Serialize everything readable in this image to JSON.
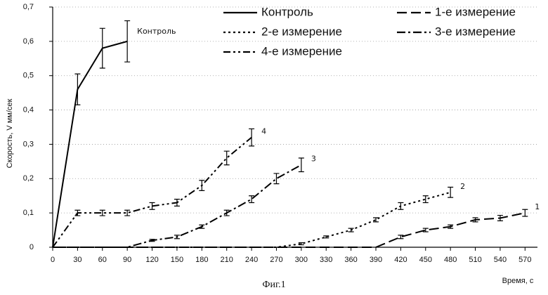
{
  "chart_data": {
    "type": "line",
    "y_label": "Скорость, V мм/сек",
    "x_label": "Время, с",
    "caption": "Фиг.1",
    "xlim": [
      0,
      585
    ],
    "ylim": [
      0,
      0.7
    ],
    "xticks": [
      0,
      30,
      60,
      90,
      120,
      150,
      180,
      210,
      240,
      270,
      300,
      330,
      360,
      390,
      420,
      450,
      480,
      510,
      540,
      570
    ],
    "yticks": [
      {
        "value": 0,
        "label": "0"
      },
      {
        "value": 0.1,
        "label": "0,1"
      },
      {
        "value": 0.2,
        "label": "0,2"
      },
      {
        "value": 0.3,
        "label": "0,3"
      },
      {
        "value": 0.4,
        "label": "0,4"
      },
      {
        "value": 0.5,
        "label": "0,5"
      },
      {
        "value": 0.6,
        "label": "0,6"
      },
      {
        "value": 0.7,
        "label": "0,7"
      }
    ],
    "grid": true,
    "series": [
      {
        "name": "Контроль",
        "end_label": "Контроль",
        "color": "#000000",
        "dash": "none",
        "x": [
          0,
          30,
          60,
          90
        ],
        "values": [
          0,
          0.46,
          0.58,
          0.6
        ],
        "errors": [
          null,
          0.045,
          0.058,
          0.06
        ]
      },
      {
        "name": "1-е измерение",
        "end_label": "1",
        "color": "#000000",
        "dash": "14,6",
        "x": [
          0,
          390,
          420,
          450,
          480,
          510,
          540,
          570
        ],
        "values": [
          0,
          0,
          0.03,
          0.05,
          0.06,
          0.08,
          0.085,
          0.1
        ],
        "errors": [
          null,
          null,
          0.005,
          0.005,
          0.005,
          0.006,
          0.008,
          0.01
        ]
      },
      {
        "name": "2-е измерение",
        "end_label": "2",
        "color": "#000000",
        "dash": "3,4",
        "x": [
          0,
          270,
          300,
          330,
          360,
          390,
          420,
          450,
          480
        ],
        "values": [
          0,
          0,
          0.01,
          0.03,
          0.05,
          0.08,
          0.12,
          0.14,
          0.16
        ],
        "errors": [
          null,
          null,
          0.003,
          0.003,
          0.005,
          0.006,
          0.01,
          0.01,
          0.015
        ]
      },
      {
        "name": "3-е измерение",
        "end_label": "3",
        "color": "#000000",
        "dash": "12,4,3,4",
        "x": [
          0,
          90,
          120,
          150,
          180,
          210,
          240,
          270,
          300
        ],
        "values": [
          0,
          0,
          0.02,
          0.03,
          0.06,
          0.1,
          0.14,
          0.2,
          0.24
        ],
        "errors": [
          null,
          null,
          0.003,
          0.005,
          0.005,
          0.008,
          0.01,
          0.015,
          0.02
        ]
      },
      {
        "name": "4-е измерение",
        "end_label": "4",
        "color": "#000000",
        "dash": "10,4,3,4,3,4",
        "x": [
          0,
          30,
          60,
          90,
          120,
          150,
          180,
          210,
          240
        ],
        "values": [
          0,
          0.1,
          0.1,
          0.1,
          0.12,
          0.13,
          0.18,
          0.26,
          0.32
        ],
        "errors": [
          null,
          0.008,
          0.008,
          0.008,
          0.01,
          0.01,
          0.015,
          0.02,
          0.025
        ]
      }
    ]
  }
}
